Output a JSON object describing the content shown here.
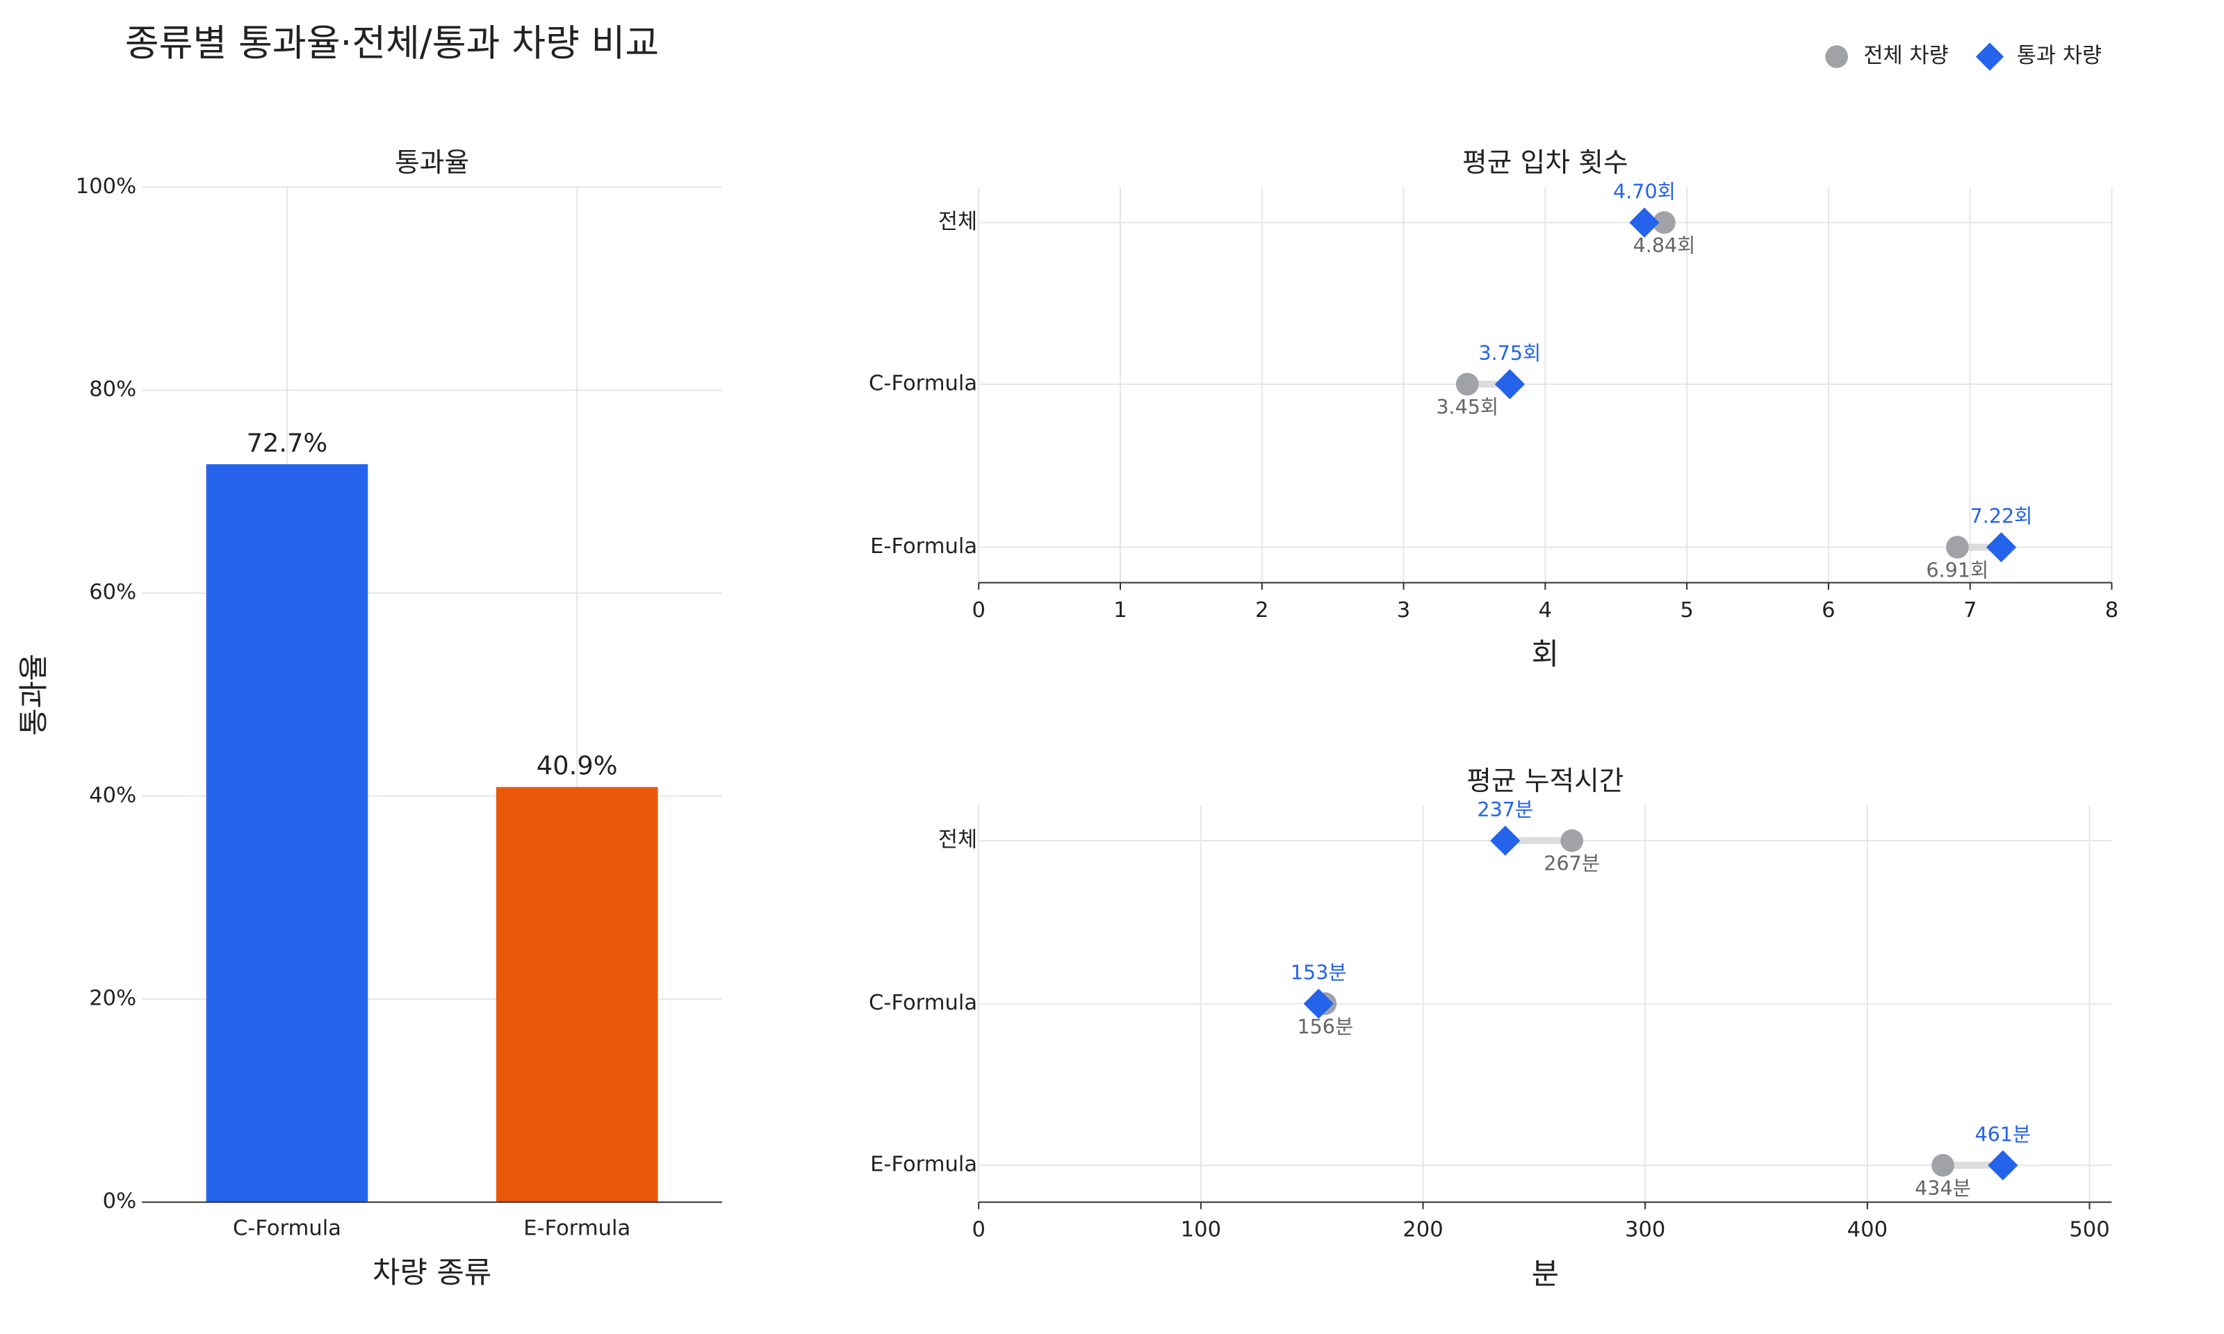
{
  "title": "종류별 통과율·전체/통과 차량 비교",
  "chart_data": [
    {
      "type": "bar",
      "title": "통과율",
      "categories": [
        "C-Formula",
        "E-Formula"
      ],
      "values": [
        72.7,
        40.9
      ],
      "value_labels": [
        "72.7%",
        "40.9%"
      ],
      "colors": [
        "#2563eb",
        "#ea580c"
      ],
      "ylim": [
        0,
        100
      ],
      "yticks": [
        {
          "value": 0,
          "label": "0%"
        },
        {
          "value": 20,
          "label": "20%"
        },
        {
          "value": 40,
          "label": "40%"
        },
        {
          "value": 60,
          "label": "60%"
        },
        {
          "value": 80,
          "label": "80%"
        },
        {
          "value": 100,
          "label": "100%"
        }
      ],
      "xlabel": "차량 종류",
      "ylabel": "통과율",
      "grid": true
    },
    {
      "type": "dumbbell",
      "title": "평균 입차 횟수",
      "categories": [
        "전체",
        "C-Formula",
        "E-Formula"
      ],
      "series": [
        {
          "name": "전체 차량",
          "color": "#a1a1a8",
          "values": [
            4.84,
            3.45,
            6.91
          ],
          "value_labels": [
            "4.84회",
            "3.45회",
            "6.91회"
          ]
        },
        {
          "name": "통과 차량",
          "color": "#2563eb",
          "values": [
            4.7,
            3.75,
            7.22
          ],
          "value_labels": [
            "4.70회",
            "3.75회",
            "7.22회"
          ]
        }
      ],
      "xlim": [
        0,
        8
      ],
      "xticks": [
        0,
        1,
        2,
        3,
        4,
        5,
        6,
        7,
        8
      ],
      "xlabel": "회",
      "grid": true
    },
    {
      "type": "dumbbell",
      "title": "평균 누적시간",
      "categories": [
        "전체",
        "C-Formula",
        "E-Formula"
      ],
      "series": [
        {
          "name": "전체 차량",
          "color": "#a1a1a8",
          "values": [
            267,
            156,
            434
          ],
          "value_labels": [
            "267분",
            "156분",
            "434분"
          ]
        },
        {
          "name": "통과 차량",
          "color": "#2563eb",
          "values": [
            237,
            153,
            461
          ],
          "value_labels": [
            "237분",
            "153분",
            "461분"
          ]
        }
      ],
      "xlim": [
        0,
        510
      ],
      "xticks": [
        0,
        100,
        200,
        300,
        400,
        500
      ],
      "xlabel": "분",
      "grid": true
    }
  ]
}
